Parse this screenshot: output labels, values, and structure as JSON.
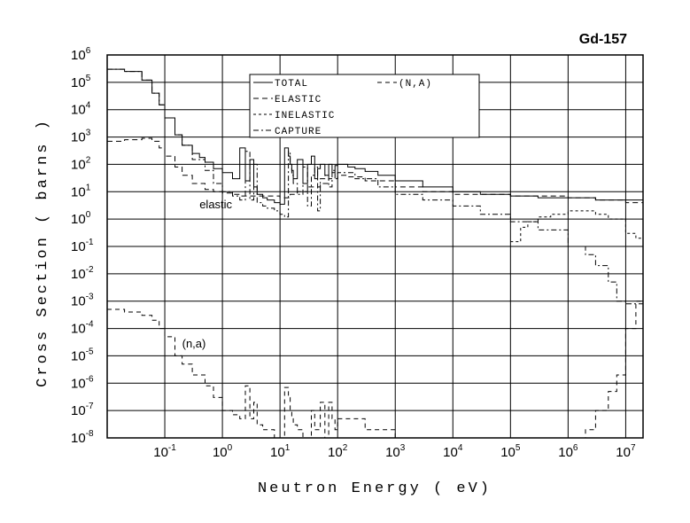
{
  "chart_data": {
    "type": "line",
    "title": "Gd-157",
    "xlabel": "Neutron Energy ( eV)",
    "ylabel": "Cross Section ( barns )",
    "xscale": "log",
    "yscale": "log",
    "xlim": [
      0.01,
      20000000
    ],
    "ylim": [
      1e-08,
      1000000
    ],
    "grid": true,
    "legend_position": "top-center",
    "x_ticks": [
      {
        "base": "10",
        "exp": "-1",
        "value": 0.1
      },
      {
        "base": "10",
        "exp": "0",
        "value": 1
      },
      {
        "base": "10",
        "exp": "1",
        "value": 10
      },
      {
        "base": "10",
        "exp": "2",
        "value": 100
      },
      {
        "base": "10",
        "exp": "3",
        "value": 1000
      },
      {
        "base": "10",
        "exp": "4",
        "value": 10000
      },
      {
        "base": "10",
        "exp": "5",
        "value": 100000
      },
      {
        "base": "10",
        "exp": "6",
        "value": 1000000
      },
      {
        "base": "10",
        "exp": "7",
        "value": 10000000
      }
    ],
    "y_ticks": [
      {
        "base": "10",
        "exp": "6",
        "value": 1000000
      },
      {
        "base": "10",
        "exp": "5",
        "value": 100000
      },
      {
        "base": "10",
        "exp": "4",
        "value": 10000
      },
      {
        "base": "10",
        "exp": "3",
        "value": 1000
      },
      {
        "base": "10",
        "exp": "2",
        "value": 100
      },
      {
        "base": "10",
        "exp": "1",
        "value": 10
      },
      {
        "base": "10",
        "exp": "0",
        "value": 1
      },
      {
        "base": "10",
        "exp": "-1",
        "value": 0.1
      },
      {
        "base": "10",
        "exp": "-2",
        "value": 0.01
      },
      {
        "base": "10",
        "exp": "-3",
        "value": 0.001
      },
      {
        "base": "10",
        "exp": "-4",
        "value": 0.0001
      },
      {
        "base": "10",
        "exp": "-5",
        "value": 1e-05
      },
      {
        "base": "10",
        "exp": "-6",
        "value": 1e-06
      },
      {
        "base": "10",
        "exp": "-7",
        "value": 1e-07
      },
      {
        "base": "10",
        "exp": "-8",
        "value": 1e-08
      }
    ],
    "annotations": [
      {
        "text": "elastic",
        "x": 0.4,
        "y": 2.5
      },
      {
        "text": "(n,a)",
        "x": 0.2,
        "y": 2e-05
      }
    ],
    "series": [
      {
        "name": "TOTAL",
        "dash": "",
        "x": [
          0.01,
          0.02,
          0.04,
          0.06,
          0.08,
          0.1,
          0.15,
          0.2,
          0.3,
          0.4,
          0.5,
          0.7,
          1,
          1.5,
          2,
          2.5,
          3,
          3.5,
          4,
          5,
          6,
          8,
          10,
          12,
          14,
          15,
          16,
          17,
          20,
          25,
          30,
          35,
          40,
          45,
          50,
          60,
          70,
          80,
          90,
          100,
          150,
          200,
          300,
          500,
          1000,
          3000,
          10000,
          30000,
          100000,
          300000,
          1000000,
          3000000,
          5000000,
          10000000,
          20000000
        ],
        "y": [
          300000,
          250000,
          120000,
          40000,
          15000,
          5000,
          1200,
          500,
          250,
          180,
          120,
          70,
          50,
          30,
          400,
          25,
          150,
          15,
          8,
          6,
          5,
          4,
          3.5,
          400,
          200,
          100,
          60,
          30,
          150,
          20,
          100,
          200,
          30,
          70,
          100,
          40,
          100,
          50,
          90,
          100,
          80,
          70,
          55,
          40,
          25,
          15,
          10,
          8,
          7,
          6,
          6,
          5,
          5,
          5,
          6
        ]
      },
      {
        "name": "ELASTIC",
        "dash": "6,4",
        "x": [
          0.01,
          0.02,
          0.04,
          0.06,
          0.08,
          0.1,
          0.15,
          0.2,
          0.3,
          0.5,
          0.7,
          1,
          1.5,
          2,
          3,
          5,
          8,
          10,
          15,
          20,
          30,
          50,
          70,
          100,
          150,
          300,
          1000,
          3000,
          10000,
          100000,
          1000000,
          3000000,
          10000000,
          20000000
        ],
        "y": [
          700,
          800,
          900,
          700,
          400,
          200,
          80,
          40,
          20,
          12,
          10,
          9,
          8,
          7,
          7,
          7,
          7,
          6,
          8,
          10,
          15,
          20,
          30,
          40,
          35,
          25,
          15,
          10,
          8,
          7,
          6,
          5,
          4,
          3
        ]
      },
      {
        "name": "INELASTIC",
        "dash": "3,3",
        "x": [
          100000,
          150000,
          200000,
          300000,
          500000,
          1000000,
          2000000,
          3000000,
          5000000,
          10000000,
          15000000,
          20000000
        ],
        "y": [
          0.15,
          0.5,
          0.8,
          1.2,
          1.5,
          2,
          2,
          1.5,
          1,
          0.3,
          0.2,
          0.15
        ]
      },
      {
        "name": "CAPTURE",
        "dash": "6,3,2,3",
        "x": [
          0.01,
          0.02,
          0.04,
          0.06,
          0.08,
          0.1,
          0.15,
          0.2,
          0.3,
          0.5,
          0.7,
          1,
          1.5,
          2,
          2.5,
          3,
          3.5,
          4,
          5,
          6,
          8,
          10,
          12,
          14,
          15,
          16,
          17,
          20,
          25,
          30,
          35,
          40,
          45,
          50,
          60,
          70,
          80,
          90,
          100,
          200,
          500,
          1000,
          3000,
          10000,
          30000,
          100000,
          300000,
          1000000,
          2000000,
          3000000,
          5000000,
          7000000,
          10000000,
          20000000
        ],
        "y": [
          300000,
          250000,
          120000,
          40000,
          15000,
          5000,
          1200,
          500,
          150,
          60,
          20,
          10,
          7,
          5,
          300,
          5,
          100,
          4,
          3,
          2.5,
          2,
          1.5,
          1.2,
          300,
          100,
          40,
          20,
          8,
          80,
          3,
          40,
          80,
          2,
          30,
          40,
          15,
          60,
          30,
          50,
          30,
          15,
          8,
          5,
          3,
          1.5,
          0.8,
          0.4,
          0.1,
          0.05,
          0.02,
          0.005,
          0.001,
          0.0008,
          0.0008
        ]
      },
      {
        "name": "(N,A)",
        "dash": "5,4",
        "x": [
          0.01,
          0.02,
          0.04,
          0.06,
          0.08,
          0.1,
          0.15,
          0.2,
          0.3,
          0.5,
          0.7,
          1,
          1.5,
          2,
          2.5,
          3,
          3.5,
          4,
          5,
          8,
          10,
          12,
          14,
          15,
          16,
          17,
          20,
          25,
          30,
          35,
          40,
          50,
          60,
          70,
          80,
          90,
          100,
          300,
          1000,
          3000,
          10000,
          100000,
          500000,
          1000000,
          2000000,
          3000000,
          5000000,
          7000000,
          10000000,
          15000000,
          20000000
        ],
        "y": [
          0.0005,
          0.0004,
          0.0003,
          0.0002,
          0.0001,
          5e-05,
          1e-05,
          5e-06,
          2e-06,
          8e-07,
          3e-07,
          1e-07,
          7e-08,
          5e-08,
          8e-07,
          5e-08,
          2e-07,
          3e-08,
          2e-08,
          1e-08,
          1e-08,
          7e-07,
          3e-07,
          1e-07,
          5e-08,
          3e-08,
          2e-08,
          1e-08,
          1e-08,
          1e-07,
          2e-08,
          2e-07,
          1e-08,
          2e-07,
          5e-08,
          2e-08,
          5e-08,
          2e-08,
          1e-08,
          1e-08,
          1e-08,
          1e-08,
          1e-08,
          1e-08,
          2e-08,
          1e-07,
          5e-07,
          2e-06,
          0.0001,
          0.001,
          0.002
        ]
      }
    ]
  }
}
